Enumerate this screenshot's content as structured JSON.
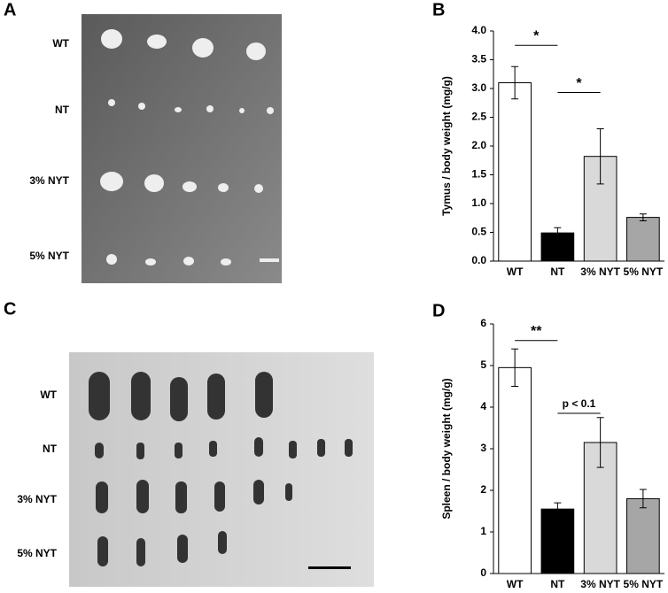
{
  "photos": [
    {
      "panel": "A",
      "rows": [
        "WT",
        "NT",
        "3% NYT",
        "5% NYT"
      ]
    },
    {
      "panel": "C",
      "rows": [
        "WT",
        "NT",
        "3% NYT",
        "5% NYT"
      ]
    }
  ],
  "chart_data": [
    {
      "type": "bar",
      "panel": "B",
      "y_label": "Tymus / body weight (mg/g)",
      "categories": [
        "WT",
        "NT",
        "3% NYT",
        "5% NYT"
      ],
      "values": [
        3.1,
        0.49,
        1.82,
        0.76
      ],
      "errors": [
        0.28,
        0.09,
        0.48,
        0.06
      ],
      "colors": [
        "#ffffff",
        "#000000",
        "#d9d9d9",
        "#a6a6a6"
      ],
      "ylim": [
        0,
        4
      ],
      "yticks": [
        {
          "value": 0,
          "label": "0.0"
        },
        0.5,
        {
          "value": 1,
          "label": "1.0"
        },
        1.5,
        {
          "value": 2,
          "label": "2.0"
        },
        2.5,
        {
          "value": 3,
          "label": "3.0"
        },
        3.5,
        {
          "value": 4,
          "label": "4.0"
        }
      ],
      "annotations": [
        {
          "text": "*",
          "between": [
            "WT",
            "NT"
          ],
          "y": 3.75
        },
        {
          "text": "*",
          "between": [
            "NT",
            "3% NYT"
          ],
          "y": 2.93
        }
      ]
    },
    {
      "type": "bar",
      "panel": "D",
      "y_label": "Spleen / body weight (mg/g)",
      "categories": [
        "WT",
        "NT",
        "3% NYT",
        "5% NYT"
      ],
      "values": [
        4.95,
        1.55,
        3.15,
        1.8
      ],
      "errors": [
        0.45,
        0.15,
        0.6,
        0.22
      ],
      "colors": [
        "#ffffff",
        "#000000",
        "#d9d9d9",
        "#a6a6a6"
      ],
      "ylim": [
        0,
        6
      ],
      "yticks": [
        0,
        1,
        2,
        3,
        4,
        5,
        6
      ],
      "annotations": [
        {
          "text": "**",
          "between": [
            "WT",
            "NT"
          ],
          "y": 5.6
        },
        {
          "text": "p < 0.1",
          "between": [
            "NT",
            "3% NYT"
          ],
          "y": 3.85
        }
      ]
    }
  ]
}
